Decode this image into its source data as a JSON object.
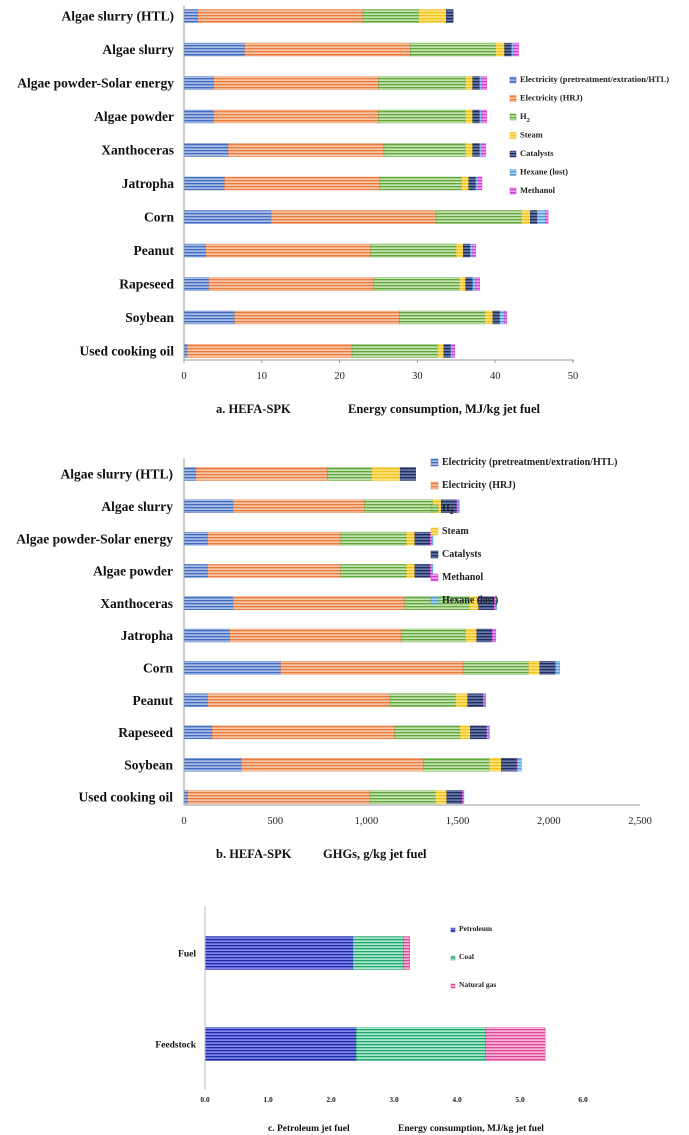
{
  "chart_data": [
    {
      "type": "bar",
      "orientation": "horizontal",
      "stacked": true,
      "panel": "a",
      "caption_label": "a. HEFA-SPK",
      "xlabel": "Energy consumption, MJ/kg jet fuel",
      "xlim": [
        0,
        50
      ],
      "xticks": [
        "0",
        "10",
        "20",
        "30",
        "40",
        "50"
      ],
      "categories": [
        "Algae slurry (HTL)",
        "Algae slurry",
        "Algae powder-Solar energy",
        "Algae powder",
        "Xanthoceras",
        "Jatropha",
        "Corn",
        "Peanut",
        "Rapeseed",
        "Soybean",
        "Used cooking oil"
      ],
      "series": [
        {
          "name": "Electricity (pretreatment/extration/HTL)",
          "values": [
            1.8,
            7.8,
            3.8,
            3.8,
            5.7,
            5.2,
            11.2,
            2.8,
            3.2,
            6.5,
            0.4
          ]
        },
        {
          "name": "Electricity (HRJ)",
          "values": [
            21.2,
            21.3,
            21.2,
            21.2,
            20.0,
            20.0,
            21.2,
            21.2,
            21.2,
            21.2,
            21.2
          ]
        },
        {
          "name": "H2",
          "values": [
            7.2,
            11.0,
            11.2,
            11.2,
            10.5,
            10.5,
            11.0,
            11.0,
            11.0,
            11.0,
            11.0
          ]
        },
        {
          "name": "Steam",
          "values": [
            3.5,
            1.1,
            0.9,
            0.9,
            0.9,
            0.9,
            1.1,
            0.9,
            0.8,
            1.0,
            0.8
          ]
        },
        {
          "name": "Catalysts",
          "values": [
            0.9,
            0.9,
            0.9,
            0.9,
            0.9,
            0.9,
            0.9,
            0.9,
            0.9,
            0.9,
            0.9
          ]
        },
        {
          "name": "Hexane (lost)",
          "values": [
            0.0,
            0.3,
            0.3,
            0.3,
            0.3,
            0.3,
            1.1,
            0.3,
            0.4,
            0.6,
            0.2
          ]
        },
        {
          "name": "Methanol",
          "values": [
            0.0,
            0.6,
            0.6,
            0.6,
            0.5,
            0.5,
            0.3,
            0.4,
            0.5,
            0.3,
            0.3
          ]
        }
      ],
      "legend": [
        "Electricity (pretreatment/extration/HTL)",
        "Electricity (HRJ)",
        "H",
        "Steam",
        "Catalysts",
        "Hexane (lost)",
        "Methanol"
      ],
      "legend_sub": "2",
      "legend_position": "right"
    },
    {
      "type": "bar",
      "orientation": "horizontal",
      "stacked": true,
      "panel": "b",
      "caption_label": "b. HEFA-SPK",
      "xlabel": "GHGs, g/kg jet fuel",
      "xlim": [
        0,
        2500
      ],
      "xticks": [
        "0",
        "500",
        "1,000",
        "1,500",
        "2,000",
        "2,500"
      ],
      "categories": [
        "Algae slurry (HTL)",
        "Algae slurry",
        "Algae powder-Solar energy",
        "Algae powder",
        "Xanthoceras",
        "Jatropha",
        "Corn",
        "Peanut",
        "Rapeseed",
        "Soybean",
        "Used cooking oil"
      ],
      "series": [
        {
          "name": "Electricity (pretreatment/extration/HTL)",
          "values": [
            65,
            270,
            130,
            130,
            270,
            250,
            530,
            130,
            155,
            315,
            20
          ]
        },
        {
          "name": "Electricity (HRJ)",
          "values": [
            720,
            720,
            730,
            730,
            940,
            940,
            1000,
            1000,
            1000,
            1000,
            1000
          ]
        },
        {
          "name": "H2",
          "values": [
            245,
            375,
            360,
            360,
            355,
            355,
            360,
            360,
            360,
            360,
            360
          ]
        },
        {
          "name": "Steam",
          "values": [
            155,
            45,
            45,
            45,
            50,
            60,
            60,
            65,
            55,
            65,
            60
          ]
        },
        {
          "name": "Catalysts",
          "values": [
            85,
            85,
            85,
            85,
            85,
            85,
            85,
            85,
            90,
            85,
            85
          ]
        },
        {
          "name": "Methanol",
          "values": [
            0,
            10,
            10,
            10,
            10,
            15,
            5,
            10,
            10,
            5,
            5
          ]
        },
        {
          "name": "Hexane (lost)",
          "values": [
            0,
            5,
            5,
            5,
            5,
            5,
            20,
            5,
            5,
            20,
            5
          ]
        }
      ],
      "legend": [
        "Electricity (pretreatment/extration/HTL)",
        "Electricity (HRJ)",
        "H",
        "Steam",
        "Catalysts",
        "Methanol",
        "Hexane (lost)"
      ],
      "legend_sub": "2",
      "legend_position": "top-right"
    },
    {
      "type": "bar",
      "orientation": "horizontal",
      "stacked": true,
      "panel": "c",
      "caption_label": "c. Petroleum jet fuel",
      "xlabel": "Energy consumption,   MJ/kg jet fuel",
      "xlim": [
        0,
        6
      ],
      "xticks": [
        "0.0",
        "1.0",
        "2.0",
        "3.0",
        "4.0",
        "5.0",
        "6.0"
      ],
      "categories": [
        "Fuel",
        "Feedstock"
      ],
      "series": [
        {
          "name": "Petroleum",
          "values": [
            2.35,
            2.4
          ]
        },
        {
          "name": "Coal",
          "values": [
            0.8,
            2.05
          ]
        },
        {
          "name": "Natural gas",
          "values": [
            0.1,
            0.95
          ]
        }
      ],
      "legend": [
        "Petroleum",
        "Coal",
        "Natural gas"
      ],
      "legend_position": "right"
    }
  ],
  "colors": {
    "blue_fill": "#a9bde3",
    "blue_line": "#3f6cc2",
    "orange_fill": "#f5c7a8",
    "orange_line": "#eb7a3c",
    "green_fill": "#c6e3b3",
    "green_line": "#5fa63b",
    "yellow_fill": "#fde37c",
    "yellow_line": "#f3c01c",
    "navy_fill": "#6577a8",
    "navy_line": "#1f2d5c",
    "skyblue_fill": "#aed4f1",
    "skyblue_line": "#4d9bd9",
    "magenta_fill": "#f3a3f2",
    "magenta_line": "#d43ad3",
    "petro_fill": "#7f86ea",
    "petro_line": "#1f2aa6",
    "coal_fill": "#aee8cc",
    "coal_line": "#1fa472",
    "gas_fill": "#f4b5d4",
    "gas_line": "#e0449c"
  }
}
